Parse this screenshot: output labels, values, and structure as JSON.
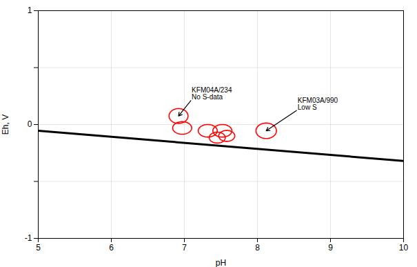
{
  "chart_data": {
    "type": "scatter",
    "xlabel": "pH",
    "ylabel": "Eh, V",
    "xlim": [
      5,
      10
    ],
    "ylim": [
      -1,
      1
    ],
    "xticks": [
      5,
      6,
      7,
      8,
      9,
      10
    ],
    "yticks": [
      -1,
      {
        "value": -0.5,
        "label": null
      },
      0,
      {
        "value": 0.5,
        "label": null
      },
      1
    ],
    "grid": true,
    "series": [
      {
        "type": "line",
        "color": "#000000",
        "x": [
          5,
          10
        ],
        "values": [
          -0.055,
          -0.32
        ]
      },
      {
        "type": "ellipse",
        "color": "#ff0000",
        "x": [
          6.97,
          7.32,
          7.52,
          7.45,
          7.58,
          6.92,
          8.12
        ],
        "values": [
          -0.03,
          -0.055,
          -0.055,
          -0.115,
          -0.1,
          0.075,
          -0.055
        ],
        "rx": [
          0.13,
          0.13,
          0.13,
          0.11,
          0.11,
          0.13,
          0.14
        ],
        "ry": [
          0.055,
          0.055,
          0.055,
          0.048,
          0.048,
          0.065,
          0.068
        ]
      }
    ],
    "annotations": [
      {
        "text": "KFM04A/234\nNo S-data",
        "xy": [
          6.92,
          0.075
        ],
        "xytext": [
          7.1,
          0.22
        ]
      },
      {
        "text": "KFM03A/990\nLow S",
        "xy": [
          8.12,
          -0.055
        ],
        "xytext": [
          8.55,
          0.13
        ]
      }
    ]
  }
}
